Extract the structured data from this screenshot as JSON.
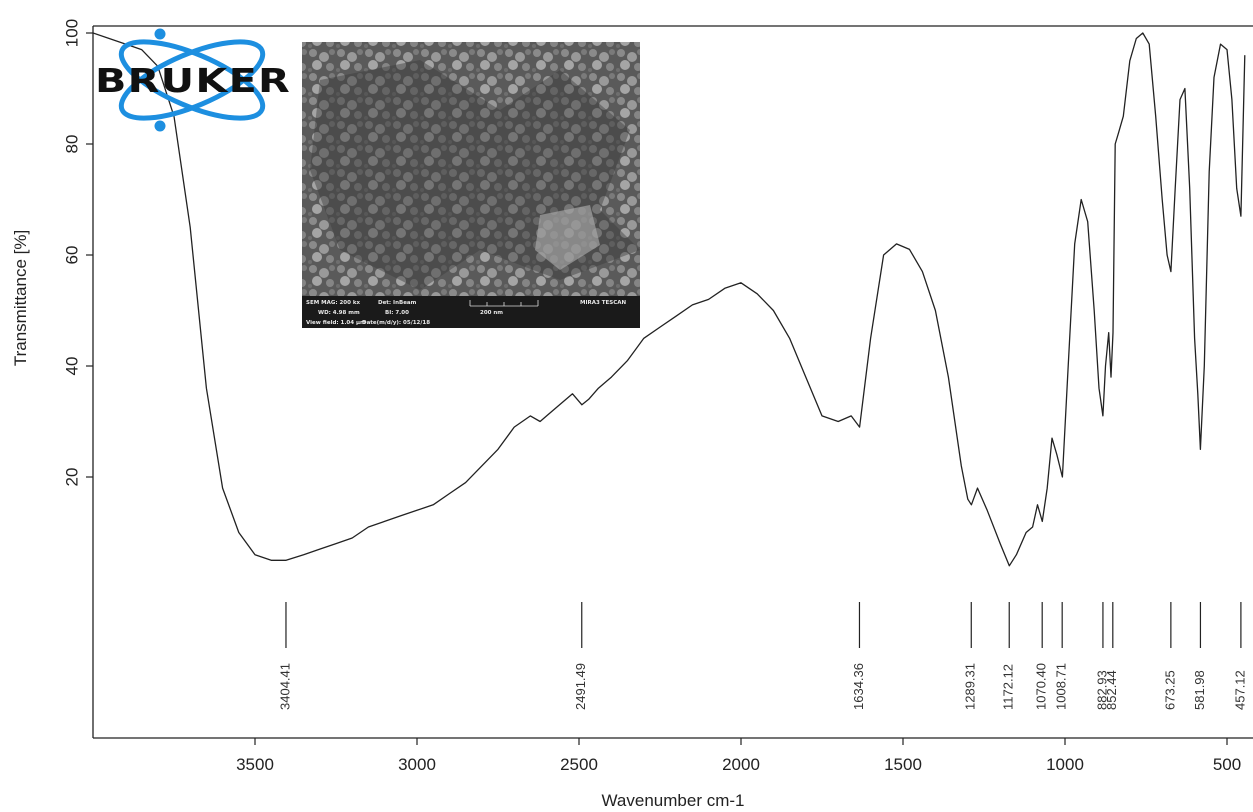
{
  "chart_data": {
    "type": "line",
    "title": "",
    "xlabel": "Wavenumber cm-1",
    "ylabel": "Transmittance [%]",
    "xlim": [
      4000,
      450
    ],
    "x_reversed": true,
    "ylim": [
      -24,
      100
    ],
    "grid": false,
    "xticks": [
      3500,
      3000,
      2500,
      2000,
      1500,
      1000,
      500
    ],
    "yticks": [
      20,
      40,
      60,
      80,
      100
    ],
    "series": [
      {
        "x": [
          4000,
          3950,
          3850,
          3800,
          3750,
          3700,
          3650,
          3600,
          3550,
          3500,
          3450,
          3404,
          3350,
          3300,
          3250,
          3200,
          3150,
          3100,
          3050,
          3000,
          2950,
          2900,
          2850,
          2800,
          2750,
          2700,
          2650,
          2620,
          2600,
          2560,
          2520,
          2491,
          2470,
          2440,
          2400,
          2350,
          2300,
          2250,
          2200,
          2150,
          2100,
          2050,
          2000,
          1950,
          1900,
          1850,
          1800,
          1750,
          1700,
          1660,
          1634,
          1600,
          1560,
          1520,
          1480,
          1440,
          1400,
          1360,
          1320,
          1300,
          1289,
          1270,
          1240,
          1200,
          1172,
          1150,
          1120,
          1100,
          1085,
          1070,
          1055,
          1040,
          1025,
          1008,
          990,
          970,
          950,
          930,
          910,
          895,
          883,
          875,
          865,
          858,
          852,
          845,
          835,
          820,
          800,
          780,
          760,
          740,
          720,
          700,
          685,
          673,
          660,
          645,
          630,
          615,
          600,
          590,
          582,
          570,
          555,
          540,
          520,
          500,
          485,
          470,
          457,
          445
        ],
        "y": [
          100,
          99,
          97,
          94,
          85,
          65,
          36,
          18,
          10,
          6,
          5,
          5,
          6,
          7,
          8,
          9,
          11,
          12,
          13,
          14,
          15,
          17,
          19,
          22,
          25,
          29,
          31,
          30,
          31,
          33,
          35,
          33,
          34,
          36,
          38,
          41,
          45,
          47,
          49,
          51,
          52,
          54,
          55,
          53,
          50,
          45,
          38,
          31,
          30,
          31,
          29,
          45,
          60,
          62,
          61,
          57,
          50,
          38,
          22,
          16,
          15,
          18,
          14,
          8,
          4,
          6,
          10,
          11,
          15,
          12,
          18,
          27,
          24,
          20,
          40,
          62,
          70,
          66,
          50,
          36,
          31,
          40,
          46,
          38,
          46,
          80,
          82,
          85,
          95,
          99,
          100,
          98,
          85,
          70,
          60,
          57,
          72,
          88,
          90,
          72,
          45,
          35,
          25,
          40,
          75,
          92,
          98,
          97,
          88,
          72,
          67,
          96
        ]
      }
    ],
    "peak_labels": [
      "3404.41",
      "2491.49",
      "1634.36",
      "1289.31",
      "1172.12",
      "1070.40",
      "1008.71",
      "882.93",
      "852.44",
      "673.25",
      "581.98",
      "457.12"
    ],
    "peak_positions": [
      3404.41,
      2491.49,
      1634.36,
      1289.31,
      1172.12,
      1070.4,
      1008.71,
      882.93,
      852.44,
      673.25,
      581.98,
      457.12
    ]
  },
  "logo": {
    "name": "BRUKER"
  },
  "sem_inset": {
    "line1": [
      "SEM MAG: 200 kx",
      "Det: InBeam",
      "MIRA3 TESCAN"
    ],
    "line2": [
      "WD: 4.98 mm",
      "BI: 7.00",
      "200 nm"
    ],
    "line3": [
      "View field: 1.04 μm",
      "Date(m/d/y): 05/12/18"
    ]
  },
  "colors": {
    "line": "#222222",
    "frame": "#222222",
    "logo_orbit": "#1d8fe0"
  },
  "icons": {
    "logo": "atom-orbit-icon"
  }
}
